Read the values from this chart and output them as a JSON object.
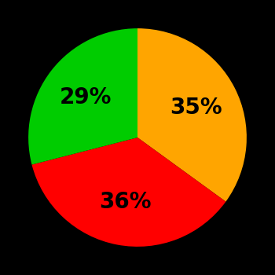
{
  "slices": [
    35,
    36,
    29
  ],
  "colors": [
    "#FFA500",
    "#FF0000",
    "#00CC00"
  ],
  "labels": [
    "35%",
    "36%",
    "29%"
  ],
  "background_color": "#000000",
  "text_color": "#000000",
  "startangle": 90,
  "figsize": [
    3.5,
    3.5
  ],
  "dpi": 100
}
